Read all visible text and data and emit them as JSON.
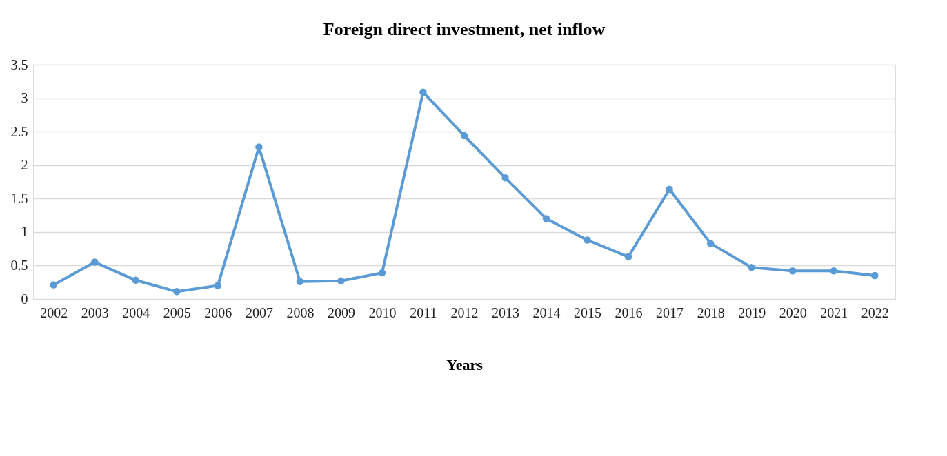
{
  "chart_data": {
    "type": "line",
    "title": "Foreign direct investment, net inflow",
    "xlabel": "Years",
    "categories": [
      "2002",
      "2003",
      "2004",
      "2005",
      "2006",
      "2007",
      "2008",
      "2009",
      "2010",
      "2011",
      "2012",
      "2013",
      "2014",
      "2015",
      "2016",
      "2017",
      "2018",
      "2019",
      "2020",
      "2021",
      "2022"
    ],
    "series": [
      {
        "color": "#5b9bd5",
        "values": [
          0.21,
          0.55,
          0.28,
          0.11,
          0.2,
          2.27,
          0.26,
          0.27,
          0.39,
          3.09,
          2.44,
          1.81,
          1.2,
          0.88,
          0.63,
          1.64,
          0.83,
          0.47,
          0.42,
          0.42,
          0.35
        ]
      }
    ],
    "ylim": [
      0,
      3.5
    ],
    "yticks": [
      0,
      0.5,
      1,
      1.5,
      2,
      2.5,
      3,
      3.5
    ],
    "grid": "y",
    "marker": "circle",
    "line_style": "solid"
  }
}
